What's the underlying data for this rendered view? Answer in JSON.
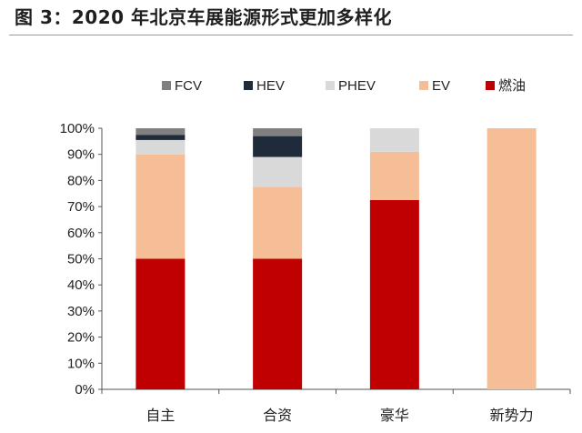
{
  "title": "图 3：2020 年北京车展能源形式更加多样化",
  "chart_data": {
    "type": "bar",
    "stacked": true,
    "title": "图 3：2020 年北京车展能源形式更加多样化",
    "xlabel": "",
    "ylabel": "",
    "ylim": [
      0,
      100
    ],
    "y_ticks": [
      "0%",
      "10%",
      "20%",
      "30%",
      "40%",
      "50%",
      "60%",
      "70%",
      "80%",
      "90%",
      "100%"
    ],
    "categories": [
      "自主",
      "合资",
      "豪华",
      "新势力"
    ],
    "legend_position": "top",
    "grid": false,
    "legend_order": [
      "FCV",
      "HEV",
      "PHEV",
      "EV",
      "燃油"
    ],
    "series": [
      {
        "name": "燃油",
        "color": "#c00000",
        "values": [
          50,
          50,
          72.5,
          0
        ]
      },
      {
        "name": "EV",
        "color": "#f5be96",
        "values": [
          40,
          27.5,
          18.5,
          100
        ]
      },
      {
        "name": "PHEV",
        "color": "#d9d9d9",
        "values": [
          5.5,
          11.5,
          9,
          0
        ]
      },
      {
        "name": "HEV",
        "color": "#1f2a3a",
        "values": [
          2,
          8,
          0,
          0
        ]
      },
      {
        "name": "FCV",
        "color": "#808080",
        "values": [
          2.5,
          3,
          0,
          0
        ]
      }
    ]
  }
}
